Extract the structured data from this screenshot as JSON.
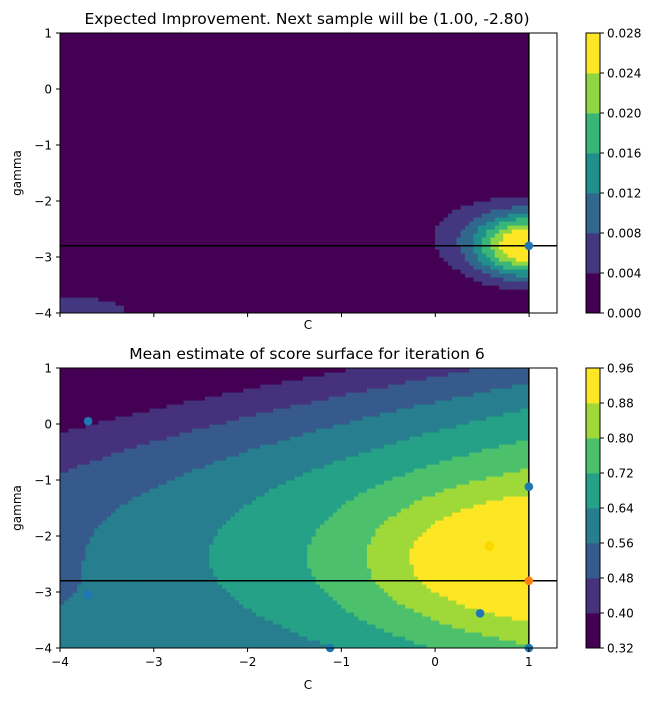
{
  "colors": {
    "viridis": [
      "#440154",
      "#472c7a",
      "#3b518b",
      "#2c718e",
      "#21908d",
      "#27ad81",
      "#5cc863",
      "#aadc32",
      "#fde725"
    ],
    "sample_point": "#1f77b4",
    "next_sample": "#ff7f0e",
    "best_point": "#ffd700",
    "guide_line": "#000000"
  },
  "chart_data": [
    {
      "type": "contour",
      "title": "Expected Improvement. Next sample will be (1.00, -2.80)",
      "xlabel": "C",
      "ylabel": "gamma",
      "xlim": [
        -4,
        1.3
      ],
      "ylim": [
        -4,
        1
      ],
      "data_xmax": 1.0,
      "x_ticks": [],
      "y_ticks": [
        "1",
        "0",
        "−1",
        "−2",
        "−3",
        "−4"
      ],
      "y_tick_values": [
        1,
        0,
        -1,
        -2,
        -3,
        -4
      ],
      "levels": [
        0.0,
        0.004,
        0.008,
        0.012,
        0.016,
        0.02,
        0.024,
        0.028
      ],
      "colorbar_labels": [
        "0.000",
        "0.004",
        "0.008",
        "0.012",
        "0.016",
        "0.020",
        "0.024",
        "0.028"
      ],
      "next_sample": {
        "x": 1.0,
        "y": -2.8
      },
      "guide_lines": {
        "vertical_x": 1.0,
        "horizontal_y": -2.8
      },
      "samples": [
        {
          "x": 1.0,
          "y": -2.8
        }
      ],
      "grid": false
    },
    {
      "type": "contour",
      "title": "Mean estimate of score surface for iteration 6",
      "xlabel": "C",
      "ylabel": "gamma",
      "xlim": [
        -4,
        1.3
      ],
      "ylim": [
        -4,
        1
      ],
      "data_xmax": 1.0,
      "x_ticks": [
        "−4",
        "−3",
        "−2",
        "−1",
        "0",
        "1"
      ],
      "x_tick_values": [
        -4,
        -3,
        -2,
        -1,
        0,
        1
      ],
      "y_ticks": [
        "1",
        "0",
        "−1",
        "−2",
        "−3",
        "−4"
      ],
      "y_tick_values": [
        1,
        0,
        -1,
        -2,
        -3,
        -4
      ],
      "levels": [
        0.32,
        0.4,
        0.48,
        0.56,
        0.64,
        0.72,
        0.8,
        0.88,
        0.96
      ],
      "colorbar_labels": [
        "0.32",
        "0.40",
        "0.48",
        "0.56",
        "0.64",
        "0.72",
        "0.80",
        "0.88",
        "0.96"
      ],
      "guide_lines": {
        "vertical_x": 1.0,
        "horizontal_y": -2.8
      },
      "samples": [
        {
          "x": -3.7,
          "y": 0.05
        },
        {
          "x": 1.0,
          "y": -1.12
        },
        {
          "x": -3.7,
          "y": -3.05
        },
        {
          "x": 0.48,
          "y": -3.38
        },
        {
          "x": -1.12,
          "y": -4.0
        },
        {
          "x": 1.0,
          "y": -4.0
        }
      ],
      "best_point": {
        "x": 0.58,
        "y": -2.18
      },
      "next_sample": {
        "x": 1.0,
        "y": -2.8
      },
      "grid": false
    }
  ]
}
